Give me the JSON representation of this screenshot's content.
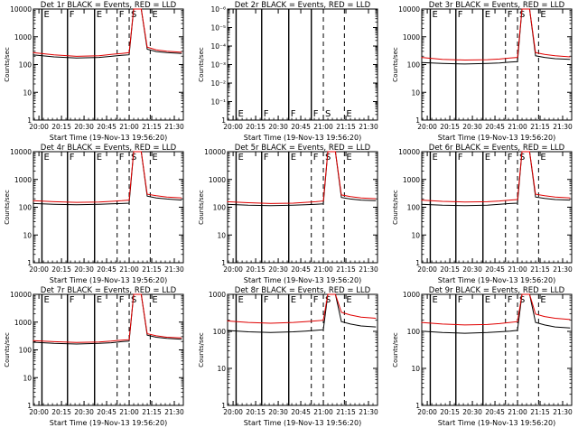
{
  "colors": {
    "events": "#000000",
    "lld": "#e00000",
    "axis": "#000000",
    "background": "#ffffff"
  },
  "shared": {
    "xlabel": "Start Time (19-Nov-13 19:56:20)",
    "ylabel": "Counts/sec",
    "x_ticks": [
      "20:00",
      "20:15",
      "20:30",
      "20:45",
      "21:00",
      "21:15",
      "21:30"
    ],
    "x_range": [
      "19:56:20",
      "21:36:00"
    ]
  },
  "chart_data": [
    {
      "type": "line",
      "title": "Det 1r BLACK = Events, RED = LLD",
      "y_scale": "log",
      "ylim": [
        1,
        12000
      ],
      "y_ticks": [
        "1",
        "10",
        "100",
        "1000",
        "10000"
      ],
      "flag_lines": [
        {
          "time": "20:02",
          "style": "solid",
          "label": "E"
        },
        {
          "time": "20:19",
          "style": "solid",
          "label": "F"
        },
        {
          "time": "20:37",
          "style": "solid",
          "label": "E"
        },
        {
          "time": "20:52",
          "style": "dashed",
          "label": "F"
        },
        {
          "time": "21:00",
          "style": "dashed",
          "label": "S"
        },
        {
          "time": "21:14",
          "style": "dashed",
          "label": "E"
        }
      ],
      "series": [
        {
          "name": "Events",
          "color": "#000000",
          "x": [
            "19:56",
            "20:10",
            "20:25",
            "20:40",
            "20:48",
            "20:55",
            "21:00",
            "21:03",
            "21:08",
            "21:12",
            "21:18",
            "21:25",
            "21:35"
          ],
          "y": [
            250,
            210,
            190,
            200,
            220,
            240,
            250,
            12000,
            12000,
            400,
            330,
            300,
            280
          ]
        },
        {
          "name": "LLD",
          "color": "#e00000",
          "x": [
            "19:56",
            "20:10",
            "20:25",
            "20:40",
            "20:48",
            "20:55",
            "21:00",
            "21:03",
            "21:08",
            "21:12",
            "21:18",
            "21:25",
            "21:35"
          ],
          "y": [
            300,
            250,
            220,
            230,
            260,
            280,
            300,
            12000,
            12000,
            480,
            380,
            340,
            310
          ]
        }
      ]
    },
    {
      "type": "line",
      "title": "Det 2r BLACK = Events, RED = LLD",
      "y_scale": "log",
      "ylim": [
        1,
        1e-06
      ],
      "y_ticks": [
        "1",
        "10⁻¹",
        "10⁻²",
        "10⁻³",
        "10⁻⁴",
        "10⁻⁵",
        "10⁻⁶"
      ],
      "flag_lines": [
        {
          "time": "20:02",
          "style": "solid",
          "label": "E"
        },
        {
          "time": "20:19",
          "style": "solid",
          "label": "F"
        },
        {
          "time": "20:37",
          "style": "solid",
          "label": "F"
        },
        {
          "time": "20:52",
          "style": "solid",
          "label": "F"
        },
        {
          "time": "21:00",
          "style": "dashed",
          "label": "S"
        },
        {
          "time": "21:14",
          "style": "dashed",
          "label": "E"
        }
      ],
      "series": []
    },
    {
      "type": "line",
      "title": "Det 3r BLACK = Events, RED = LLD",
      "y_scale": "log",
      "ylim": [
        1,
        12000
      ],
      "y_ticks": [
        "1",
        "10",
        "100",
        "1000",
        "10000"
      ],
      "flag_lines": [
        {
          "time": "20:02",
          "style": "solid",
          "label": "E"
        },
        {
          "time": "20:19",
          "style": "solid",
          "label": "F"
        },
        {
          "time": "20:37",
          "style": "solid",
          "label": "E"
        },
        {
          "time": "20:52",
          "style": "dashed",
          "label": "F"
        },
        {
          "time": "21:00",
          "style": "dashed",
          "label": "S"
        },
        {
          "time": "21:14",
          "style": "dashed",
          "label": "E"
        }
      ],
      "series": [
        {
          "name": "Events",
          "color": "#000000",
          "x": [
            "19:56",
            "20:10",
            "20:25",
            "20:40",
            "20:48",
            "20:55",
            "21:00",
            "21:03",
            "21:08",
            "21:12",
            "21:18",
            "21:25",
            "21:35"
          ],
          "y": [
            130,
            120,
            115,
            120,
            125,
            135,
            140,
            12000,
            12000,
            230,
            200,
            180,
            170
          ]
        },
        {
          "name": "LLD",
          "color": "#e00000",
          "x": [
            "19:56",
            "20:10",
            "20:25",
            "20:40",
            "20:48",
            "20:55",
            "21:00",
            "21:03",
            "21:08",
            "21:12",
            "21:18",
            "21:25",
            "21:35"
          ],
          "y": [
            200,
            170,
            160,
            165,
            175,
            190,
            200,
            12000,
            12000,
            300,
            260,
            230,
            210
          ]
        }
      ]
    },
    {
      "type": "line",
      "title": "Det 4r BLACK = Events, RED = LLD",
      "y_scale": "log",
      "ylim": [
        1,
        12000
      ],
      "y_ticks": [
        "1",
        "10",
        "100",
        "1000",
        "10000"
      ],
      "flag_lines": [
        {
          "time": "20:02",
          "style": "solid",
          "label": "E"
        },
        {
          "time": "20:19",
          "style": "solid",
          "label": "F"
        },
        {
          "time": "20:37",
          "style": "solid",
          "label": "E"
        },
        {
          "time": "20:52",
          "style": "dashed",
          "label": "F"
        },
        {
          "time": "21:00",
          "style": "dashed",
          "label": "S"
        },
        {
          "time": "21:14",
          "style": "dashed",
          "label": "E"
        }
      ],
      "series": [
        {
          "name": "Events",
          "color": "#000000",
          "x": [
            "19:56",
            "20:10",
            "20:25",
            "20:40",
            "20:48",
            "20:55",
            "21:00",
            "21:03",
            "21:08",
            "21:12",
            "21:18",
            "21:25",
            "21:35"
          ],
          "y": [
            150,
            140,
            135,
            140,
            145,
            150,
            155,
            12000,
            12000,
            280,
            240,
            220,
            200
          ]
        },
        {
          "name": "LLD",
          "color": "#e00000",
          "x": [
            "19:56",
            "20:10",
            "20:25",
            "20:40",
            "20:48",
            "20:55",
            "21:00",
            "21:03",
            "21:08",
            "21:12",
            "21:18",
            "21:25",
            "21:35"
          ],
          "y": [
            190,
            175,
            165,
            170,
            180,
            190,
            200,
            12000,
            12000,
            330,
            290,
            260,
            240
          ]
        }
      ]
    },
    {
      "type": "line",
      "title": "Det 5r BLACK = Events, RED = LLD",
      "y_scale": "log",
      "ylim": [
        1,
        12000
      ],
      "y_ticks": [
        "1",
        "10",
        "100",
        "1000",
        "10000"
      ],
      "flag_lines": [
        {
          "time": "20:02",
          "style": "solid",
          "label": "E"
        },
        {
          "time": "20:19",
          "style": "solid",
          "label": "F"
        },
        {
          "time": "20:37",
          "style": "solid",
          "label": "E"
        },
        {
          "time": "20:52",
          "style": "dashed",
          "label": "F"
        },
        {
          "time": "21:00",
          "style": "dashed",
          "label": "S"
        },
        {
          "time": "21:14",
          "style": "dashed",
          "label": "E"
        }
      ],
      "series": [
        {
          "name": "Events",
          "color": "#000000",
          "x": [
            "19:56",
            "20:10",
            "20:25",
            "20:40",
            "20:48",
            "20:55",
            "21:00",
            "21:03",
            "21:08",
            "21:12",
            "21:18",
            "21:25",
            "21:35"
          ],
          "y": [
            140,
            130,
            125,
            130,
            135,
            140,
            145,
            12000,
            12000,
            250,
            220,
            200,
            190
          ]
        },
        {
          "name": "LLD",
          "color": "#e00000",
          "x": [
            "19:56",
            "20:10",
            "20:25",
            "20:40",
            "20:48",
            "20:55",
            "21:00",
            "21:03",
            "21:08",
            "21:12",
            "21:18",
            "21:25",
            "21:35"
          ],
          "y": [
            175,
            160,
            150,
            155,
            165,
            175,
            185,
            12000,
            12000,
            310,
            270,
            240,
            225
          ]
        }
      ]
    },
    {
      "type": "line",
      "title": "Det 6r BLACK = Events, RED = LLD",
      "y_scale": "log",
      "ylim": [
        1,
        12000
      ],
      "y_ticks": [
        "1",
        "10",
        "100",
        "1000",
        "10000"
      ],
      "flag_lines": [
        {
          "time": "20:02",
          "style": "solid",
          "label": "E"
        },
        {
          "time": "20:19",
          "style": "solid",
          "label": "F"
        },
        {
          "time": "20:37",
          "style": "solid",
          "label": "E"
        },
        {
          "time": "20:52",
          "style": "dashed",
          "label": "F"
        },
        {
          "time": "21:00",
          "style": "dashed",
          "label": "S"
        },
        {
          "time": "21:14",
          "style": "dashed",
          "label": "E"
        }
      ],
      "series": [
        {
          "name": "Events",
          "color": "#000000",
          "x": [
            "19:56",
            "20:10",
            "20:25",
            "20:40",
            "20:48",
            "20:55",
            "21:00",
            "21:03",
            "21:08",
            "21:12",
            "21:18",
            "21:25",
            "21:35"
          ],
          "y": [
            140,
            130,
            125,
            130,
            140,
            150,
            155,
            12000,
            12000,
            260,
            230,
            210,
            200
          ]
        },
        {
          "name": "LLD",
          "color": "#e00000",
          "x": [
            "19:56",
            "20:10",
            "20:25",
            "20:40",
            "20:48",
            "20:55",
            "21:00",
            "21:03",
            "21:08",
            "21:12",
            "21:18",
            "21:25",
            "21:35"
          ],
          "y": [
            200,
            180,
            170,
            175,
            185,
            200,
            210,
            12000,
            12000,
            330,
            290,
            260,
            240
          ]
        }
      ]
    },
    {
      "type": "line",
      "title": "Det 7r BLACK = Events, RED = LLD",
      "y_scale": "log",
      "ylim": [
        1,
        12000
      ],
      "y_ticks": [
        "1",
        "10",
        "100",
        "1000",
        "10000"
      ],
      "flag_lines": [
        {
          "time": "20:02",
          "style": "solid",
          "label": "E"
        },
        {
          "time": "20:19",
          "style": "solid",
          "label": "F"
        },
        {
          "time": "20:37",
          "style": "solid",
          "label": "E"
        },
        {
          "time": "20:52",
          "style": "dashed",
          "label": "F"
        },
        {
          "time": "21:00",
          "style": "dashed",
          "label": "S"
        },
        {
          "time": "21:14",
          "style": "dashed",
          "label": "E"
        }
      ],
      "series": [
        {
          "name": "Events",
          "color": "#000000",
          "x": [
            "19:56",
            "20:10",
            "20:25",
            "20:40",
            "20:48",
            "20:55",
            "21:00",
            "21:03",
            "21:08",
            "21:12",
            "21:18",
            "21:25",
            "21:35"
          ],
          "y": [
            210,
            190,
            180,
            190,
            200,
            220,
            230,
            12000,
            12000,
            380,
            320,
            290,
            270
          ]
        },
        {
          "name": "LLD",
          "color": "#e00000",
          "x": [
            "19:56",
            "20:10",
            "20:25",
            "20:40",
            "20:48",
            "20:55",
            "21:00",
            "21:03",
            "21:08",
            "21:12",
            "21:18",
            "21:25",
            "21:35"
          ],
          "y": [
            240,
            220,
            205,
            215,
            230,
            250,
            260,
            12000,
            12000,
            430,
            360,
            320,
            300
          ]
        }
      ]
    },
    {
      "type": "line",
      "title": "Det 8r BLACK = Events, RED = LLD",
      "y_scale": "log",
      "ylim": [
        1,
        1200
      ],
      "y_ticks": [
        "1",
        "10",
        "100",
        "1000"
      ],
      "flag_lines": [
        {
          "time": "20:02",
          "style": "solid",
          "label": "E"
        },
        {
          "time": "20:19",
          "style": "solid",
          "label": "F"
        },
        {
          "time": "20:37",
          "style": "solid",
          "label": "E"
        },
        {
          "time": "20:52",
          "style": "dashed",
          "label": "F"
        },
        {
          "time": "21:00",
          "style": "dashed",
          "label": "S"
        },
        {
          "time": "21:14",
          "style": "dashed",
          "label": "E"
        }
      ],
      "series": [
        {
          "name": "Events",
          "color": "#000000",
          "x": [
            "19:56",
            "20:10",
            "20:25",
            "20:40",
            "20:48",
            "20:55",
            "21:00",
            "21:03",
            "21:08",
            "21:12",
            "21:18",
            "21:25",
            "21:35"
          ],
          "y": [
            120,
            110,
            105,
            110,
            115,
            120,
            125,
            1200,
            1200,
            210,
            180,
            160,
            150
          ]
        },
        {
          "name": "LLD",
          "color": "#e00000",
          "x": [
            "19:56",
            "20:10",
            "20:25",
            "20:40",
            "20:48",
            "20:55",
            "21:00",
            "21:03",
            "21:08",
            "21:12",
            "21:18",
            "21:25",
            "21:35"
          ],
          "y": [
            220,
            200,
            190,
            200,
            210,
            220,
            230,
            1200,
            1200,
            380,
            320,
            280,
            260
          ]
        }
      ]
    },
    {
      "type": "line",
      "title": "Det 9r BLACK = Events, RED = LLD",
      "y_scale": "log",
      "ylim": [
        1,
        1200
      ],
      "y_ticks": [
        "1",
        "10",
        "100",
        "1000"
      ],
      "flag_lines": [
        {
          "time": "20:02",
          "style": "solid",
          "label": "E"
        },
        {
          "time": "20:19",
          "style": "solid",
          "label": "F"
        },
        {
          "time": "20:37",
          "style": "solid",
          "label": "E"
        },
        {
          "time": "20:52",
          "style": "dashed",
          "label": "F"
        },
        {
          "time": "21:00",
          "style": "dashed",
          "label": "S"
        },
        {
          "time": "21:14",
          "style": "dashed",
          "label": "E"
        }
      ],
      "series": [
        {
          "name": "Events",
          "color": "#000000",
          "x": [
            "19:56",
            "20:10",
            "20:25",
            "20:40",
            "20:48",
            "20:55",
            "21:00",
            "21:03",
            "21:08",
            "21:12",
            "21:18",
            "21:25",
            "21:35"
          ],
          "y": [
            115,
            105,
            100,
            105,
            110,
            115,
            120,
            1200,
            1200,
            200,
            170,
            150,
            140
          ]
        },
        {
          "name": "LLD",
          "color": "#e00000",
          "x": [
            "19:56",
            "20:10",
            "20:25",
            "20:40",
            "20:48",
            "20:55",
            "21:00",
            "21:03",
            "21:08",
            "21:12",
            "21:18",
            "21:25",
            "21:35"
          ],
          "y": [
            200,
            180,
            170,
            175,
            185,
            200,
            210,
            1200,
            1200,
            340,
            290,
            260,
            240
          ]
        }
      ]
    }
  ]
}
